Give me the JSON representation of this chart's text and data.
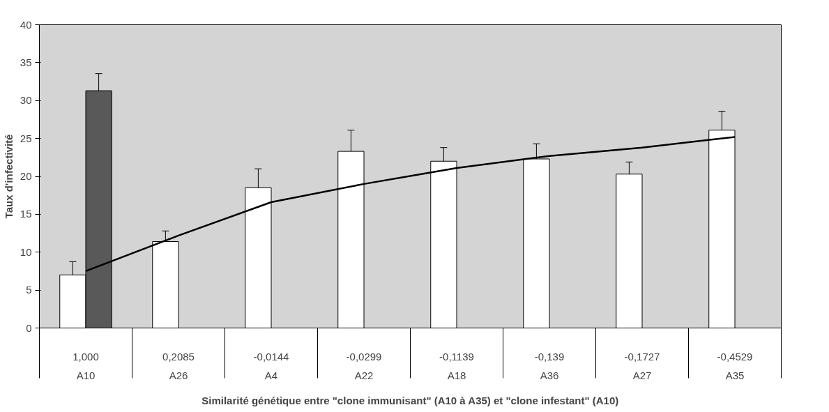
{
  "chart_data": {
    "type": "bar",
    "xlabel": "Similarité génétique entre \"clone immunisant\" (A10 à A35) et \"clone infestant\" (A10)",
    "ylabel": "Taux d'infectivité",
    "categories": [
      "1,000\nA10",
      "0,2085\nA26",
      "-0,0144\nA4",
      "-0,0299\nA22",
      "-0,1139\nA18",
      "-0,139\nA36",
      "-0,1727\nA27",
      "-0,4529\nA35"
    ],
    "series": [
      {
        "color": "#ffffff",
        "values": [
          7.0,
          11.4,
          18.5,
          23.3,
          22.0,
          22.3,
          20.3,
          26.1
        ],
        "errors": [
          1.75,
          1.4,
          2.5,
          2.8,
          1.8,
          2.0,
          1.6,
          2.5
        ]
      },
      {
        "color": "#595959",
        "values": [
          31.3,
          null,
          null,
          null,
          null,
          null,
          null,
          null
        ],
        "errors": [
          2.25,
          null,
          null,
          null,
          null,
          null,
          null,
          null
        ]
      },
      {
        "type": "line",
        "color": "#000000",
        "values": [
          7.5,
          12.2,
          16.6,
          19.0,
          21.1,
          22.7,
          23.8,
          25.2
        ]
      }
    ],
    "ylim": [
      0,
      40
    ],
    "yticks": [
      0,
      5,
      10,
      15,
      20,
      25,
      30,
      35,
      40
    ],
    "grid": false
  }
}
